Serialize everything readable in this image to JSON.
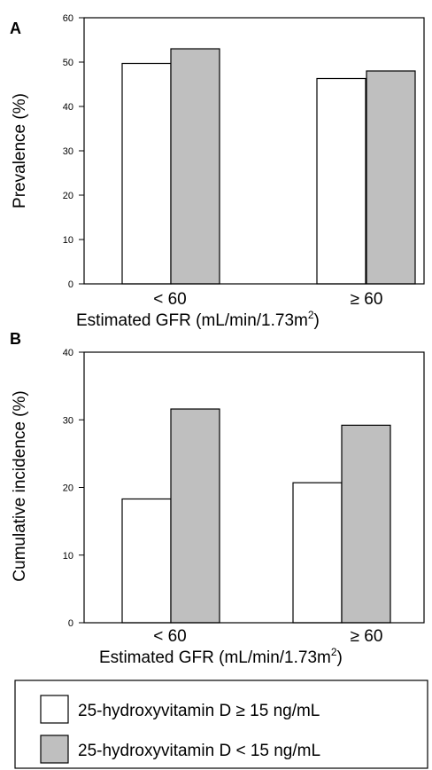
{
  "legend": [
    {
      "label": "25-hydroxyvitamin D ≥ 15 ng/mL",
      "color": "#ffffff"
    },
    {
      "label": "25-hydroxyvitamin D < 15 ng/mL",
      "color": "#bfbfbf"
    }
  ],
  "chart_data": [
    {
      "type": "bar",
      "panel": "A",
      "ylabel": "Prevalence (%)",
      "xlabel": "Estimated GFR (mL/min/1.73m",
      "xlabel_sup": "2",
      "xlabel_end": ")",
      "categories": [
        "< 60",
        "≥ 60"
      ],
      "series": [
        {
          "name": "25-hydroxyvitamin D ≥ 15 ng/mL",
          "values": [
            49.7,
            46.3
          ],
          "color": "#ffffff"
        },
        {
          "name": "25-hydroxyvitamin D < 15 ng/mL",
          "values": [
            53.0,
            48.0
          ],
          "color": "#bfbfbf"
        }
      ],
      "ylim": [
        0,
        60
      ],
      "yticks": [
        0,
        10,
        20,
        30,
        40,
        50,
        60
      ]
    },
    {
      "type": "bar",
      "panel": "B",
      "ylabel": "Cumulative incidence (%)",
      "xlabel": "Estimated GFR (mL/min/1.73m",
      "xlabel_sup": "2",
      "xlabel_end": ")",
      "categories": [
        "< 60",
        "≥ 60"
      ],
      "series": [
        {
          "name": "25-hydroxyvitamin D ≥ 15 ng/mL",
          "values": [
            18.3,
            20.7
          ],
          "color": "#ffffff"
        },
        {
          "name": "25-hydroxyvitamin D < 15 ng/mL",
          "values": [
            31.6,
            29.2
          ],
          "color": "#bfbfbf"
        }
      ],
      "ylim": [
        0,
        40
      ],
      "yticks": [
        0,
        10,
        20,
        30,
        40
      ]
    }
  ]
}
